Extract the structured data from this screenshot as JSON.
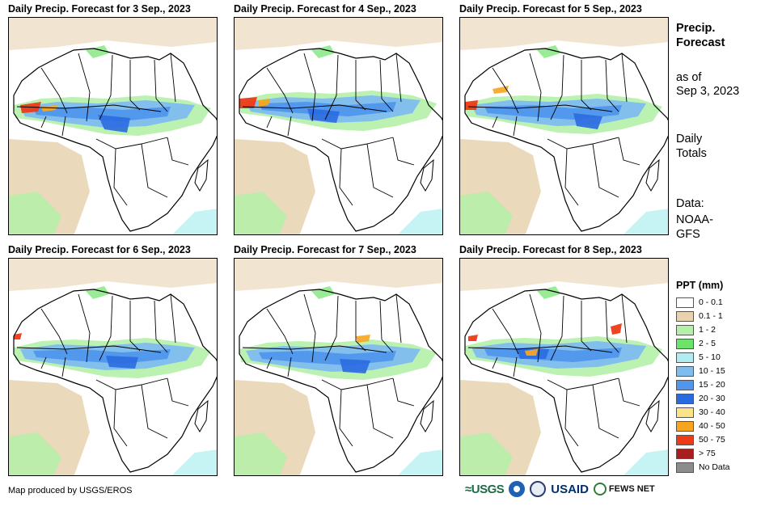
{
  "panels": [
    {
      "title": "Daily Precip. Forecast for 3 Sep., 2023"
    },
    {
      "title": "Daily Precip. Forecast for 4 Sep., 2023"
    },
    {
      "title": "Daily Precip. Forecast for 5 Sep., 2023"
    },
    {
      "title": "Daily Precip. Forecast for 6 Sep., 2023"
    },
    {
      "title": "Daily Precip. Forecast for 7 Sep., 2023"
    },
    {
      "title": "Daily Precip. Forecast for 8 Sep., 2023"
    }
  ],
  "sidebar": {
    "title_line1": "Precip.",
    "title_line2": "Forecast",
    "asof_line1": "as of",
    "asof_line2": "Sep 3, 2023",
    "totals_line1": "Daily",
    "totals_line2": "Totals",
    "data_line1": "Data:",
    "data_line2": "NOAA-",
    "data_line3": "GFS"
  },
  "legend": {
    "title": "PPT (mm)",
    "items": [
      {
        "label": "0 - 0.1",
        "color": "#ffffff"
      },
      {
        "label": "0.1 - 1",
        "color": "#e8d2b0"
      },
      {
        "label": "1 - 2",
        "color": "#b4f0a8"
      },
      {
        "label": "2 - 5",
        "color": "#6ee36a"
      },
      {
        "label": "5 - 10",
        "color": "#aeeef0"
      },
      {
        "label": "10 - 15",
        "color": "#7fbcf0"
      },
      {
        "label": "15 - 20",
        "color": "#4f96ec"
      },
      {
        "label": "20 - 30",
        "color": "#2a6ae0"
      },
      {
        "label": "30 - 40",
        "color": "#fbe38a"
      },
      {
        "label": "40 - 50",
        "color": "#f7a51e"
      },
      {
        "label": "50 - 75",
        "color": "#ee3a16"
      },
      {
        "label": "> 75",
        "color": "#a81e1e"
      },
      {
        "label": "No Data",
        "color": "#8c8c8c"
      }
    ]
  },
  "footer": {
    "credit": "Map produced by USGS/EROS",
    "logos": {
      "usgs": "≈USGS",
      "usaid": "USAID",
      "fews": "FEWS NET"
    }
  }
}
